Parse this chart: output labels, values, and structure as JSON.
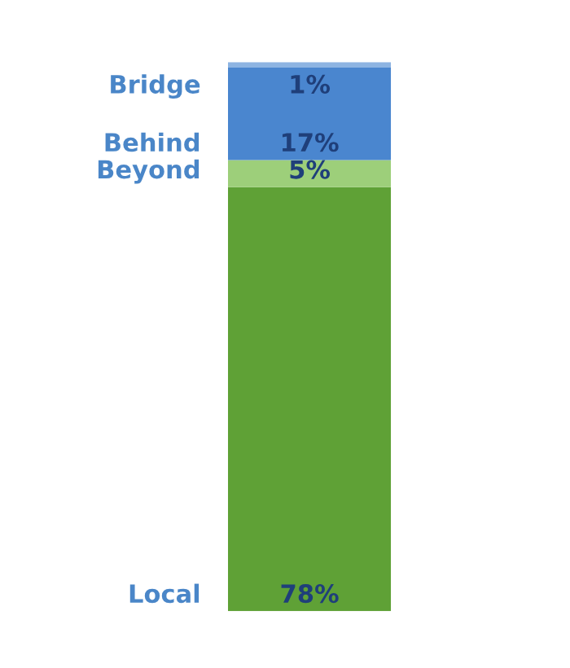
{
  "chart_data": {
    "type": "bar",
    "stacked": true,
    "categories": [
      null
    ],
    "data_labels": true,
    "series": [
      {
        "name": "Local",
        "color": "#5fa136",
        "values": [
          78
        ],
        "value_labels": [
          "78%"
        ]
      },
      {
        "name": "Beyond",
        "color": "#9dcf7a",
        "values": [
          5
        ],
        "value_labels": [
          "5%"
        ]
      },
      {
        "name": "Behind",
        "color": "#4a86cf",
        "values": [
          17
        ],
        "value_labels": [
          "17%"
        ]
      },
      {
        "name": "Bridge",
        "color": "#8db4e2",
        "values": [
          1
        ],
        "value_labels": [
          "1%"
        ]
      }
    ]
  }
}
